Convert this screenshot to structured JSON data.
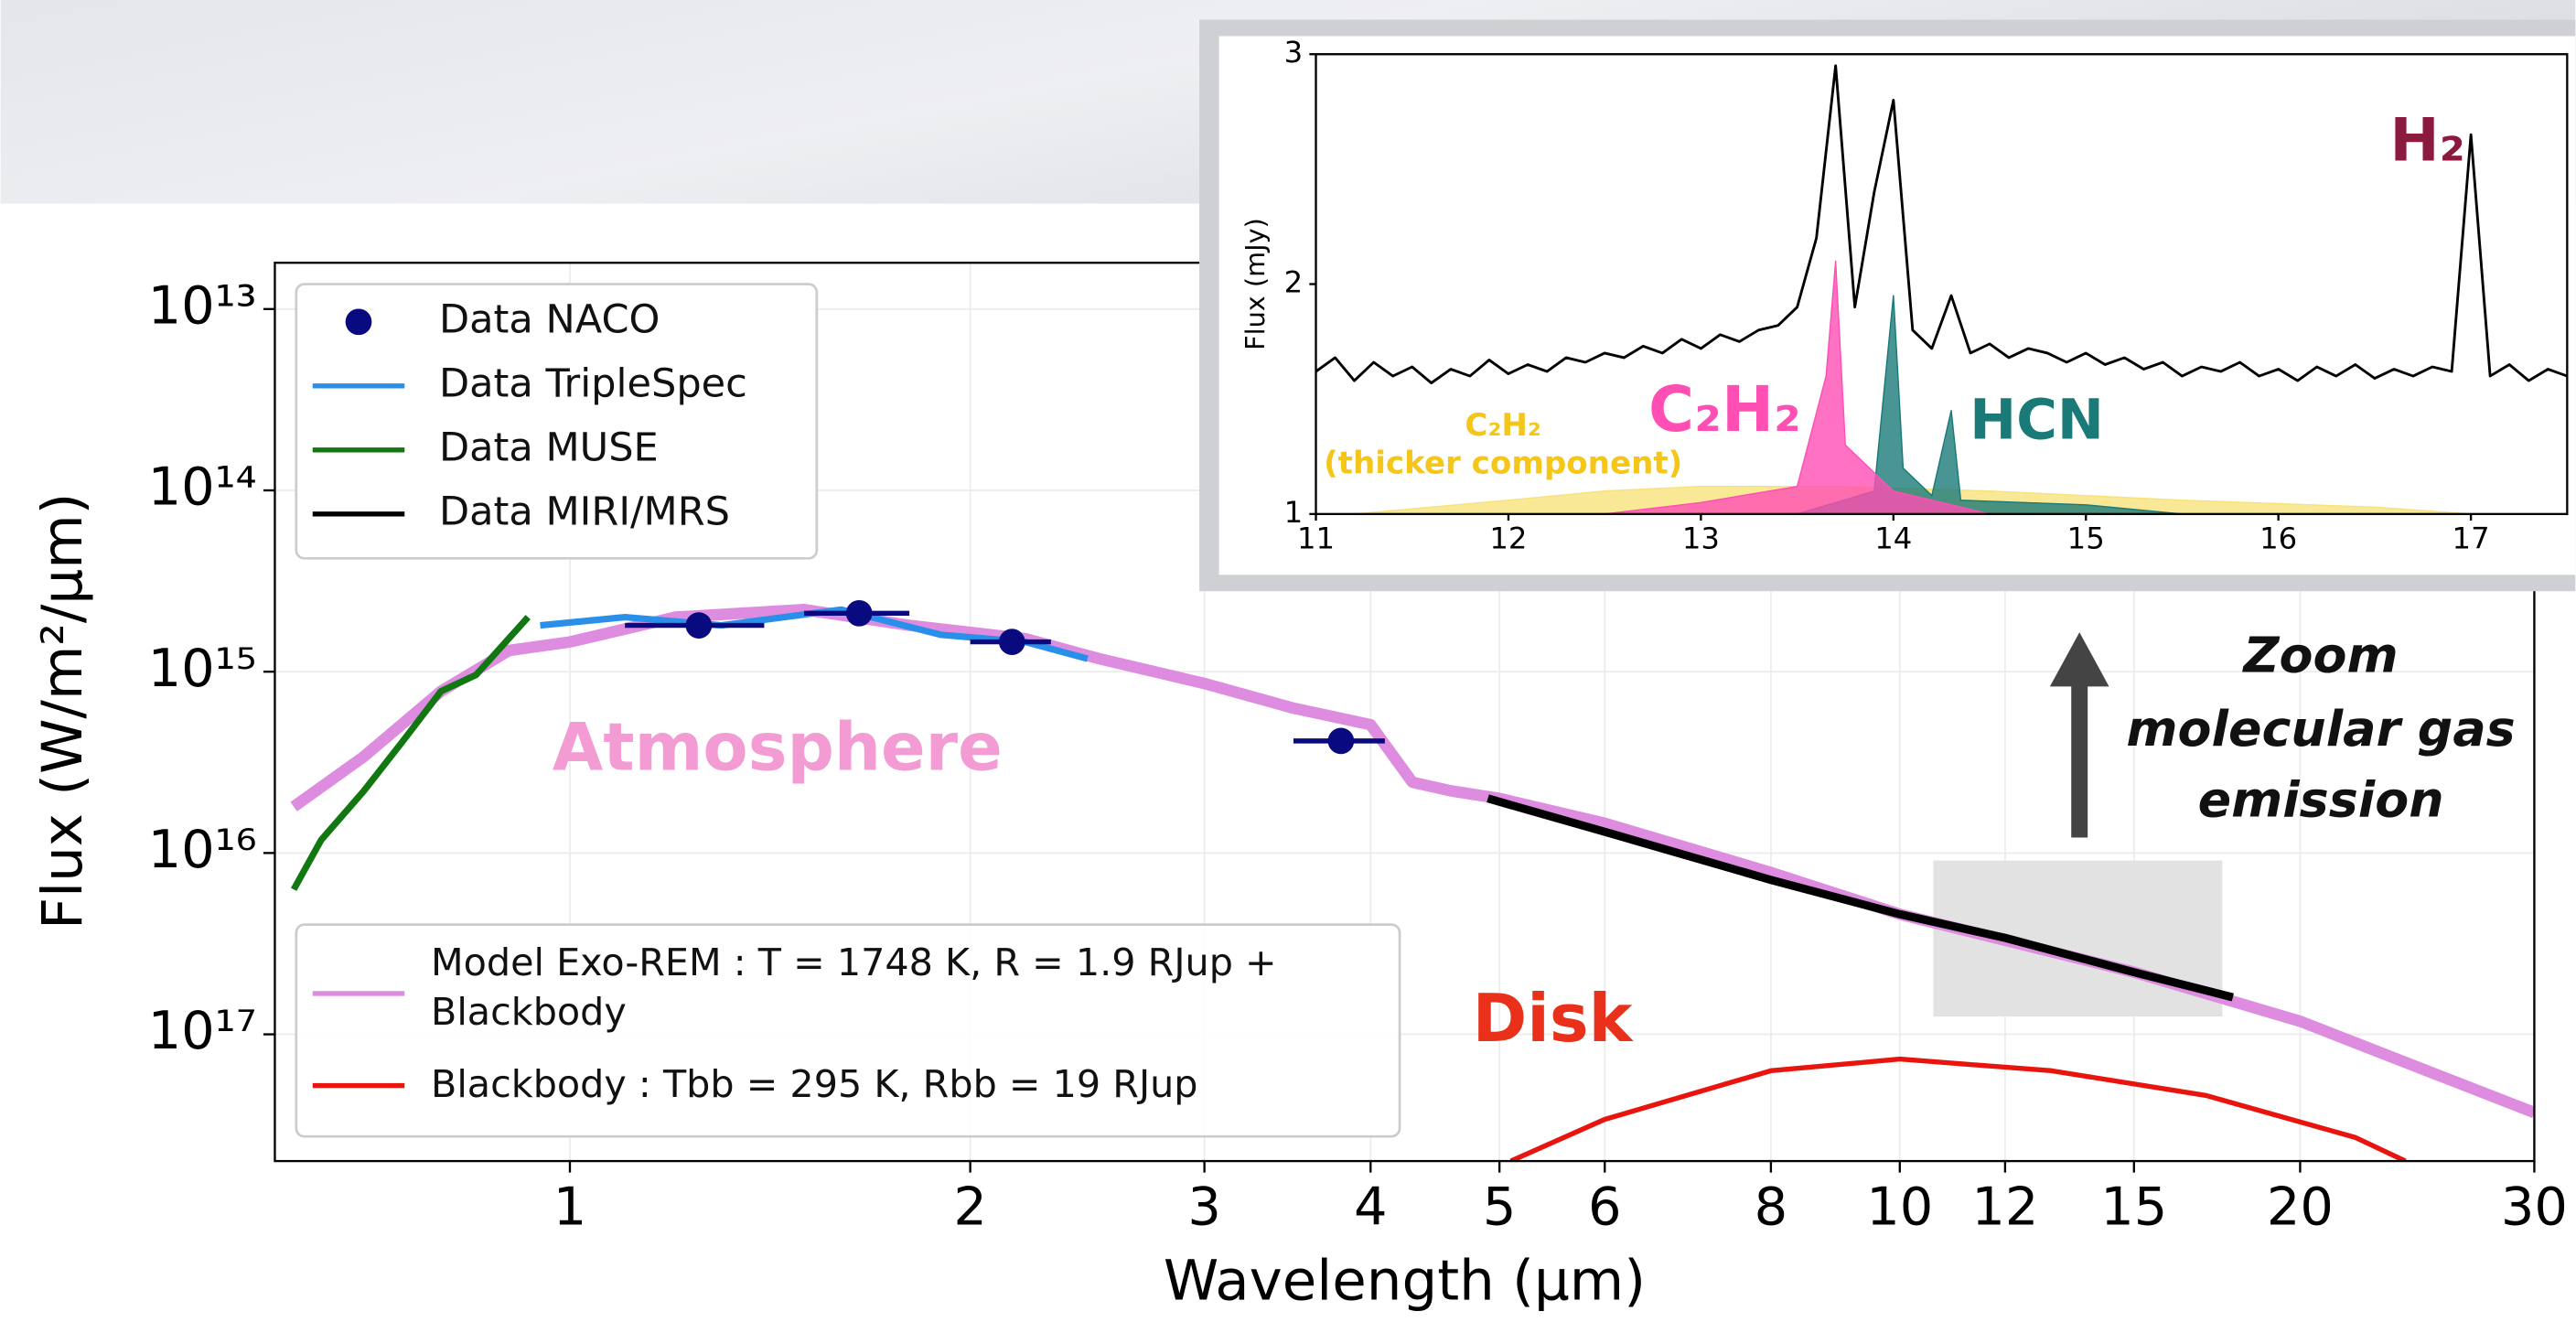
{
  "chart_data": [
    {
      "type": "line",
      "xscale": "log",
      "yscale": "log",
      "grid": true,
      "xlabel": "Wavelength (μm)",
      "ylabel": "Flux (W/m²/μm)",
      "xlim": [
        0.6,
        30
      ],
      "ylim": [
        2e-18,
        1.8e-13
      ],
      "xticks": [
        1,
        2,
        3,
        4,
        5,
        6,
        8,
        10,
        12,
        15,
        20,
        30
      ],
      "yticks": [
        {
          "value": 1e-13,
          "label": "10¹³"
        },
        {
          "value": 1e-14,
          "label": "10¹⁴"
        },
        {
          "value": 1e-15,
          "label": "10¹⁵"
        },
        {
          "value": 1e-16,
          "label": "10¹⁶"
        },
        {
          "value": 1e-17,
          "label": "10¹⁷"
        }
      ],
      "series": [
        {
          "name": "Model Exo-REM : T = 1748 K, R = 1.9 RJup + Blackbody",
          "color": "#dd8ce0",
          "legend": "lower",
          "x": [
            0.62,
            0.7,
            0.8,
            0.9,
            1.0,
            1.2,
            1.5,
            1.8,
            2.2,
            2.5,
            3.0,
            3.5,
            4.0,
            4.3,
            4.6,
            5,
            6,
            8,
            10,
            15,
            20,
            30
          ],
          "values": [
            1.8e-16,
            3.4e-16,
            7.8e-16,
            1.31e-15,
            1.46e-15,
            2e-15,
            2.2e-15,
            1.8e-15,
            1.52e-15,
            1.18e-15,
            8.6e-16,
            6.3e-16,
            5.1e-16,
            2.46e-16,
            2.2e-16,
            2e-16,
            1.46e-16,
            7.8e-17,
            4.6e-17,
            2.2e-17,
            1.18e-17,
            3.7e-18
          ]
        },
        {
          "name": "Blackbody : Tbb = 295 K, Rbb = 19 RJup",
          "color": "#e8150f",
          "legend": "lower",
          "x": [
            5.1,
            6,
            8,
            10,
            13,
            17,
            22,
            24
          ],
          "values": [
            2e-18,
            3.4e-18,
            6.3e-18,
            7.3e-18,
            6.3e-18,
            4.6e-18,
            2.7e-18,
            2e-18
          ]
        },
        {
          "name": "Data MUSE",
          "color": "#117711",
          "legend": "upper",
          "x": [
            0.62,
            0.65,
            0.7,
            0.75,
            0.8,
            0.85,
            0.93
          ],
          "values": [
            6.3e-17,
            1.18e-16,
            2.2e-16,
            4.2e-16,
            7.8e-16,
            9.6e-16,
            2e-15
          ]
        },
        {
          "name": "Data TripleSpec",
          "color": "#2a8fe8",
          "legend": "upper",
          "x": [
            0.95,
            1.1,
            1.3,
            1.6,
            1.9,
            2.2,
            2.45
          ],
          "values": [
            1.8e-15,
            2e-15,
            1.8e-15,
            2.2e-15,
            1.6e-15,
            1.46e-15,
            1.18e-15
          ]
        },
        {
          "name": "Data MIRI/MRS",
          "color": "#000000",
          "legend": "upper",
          "x": [
            4.9,
            6,
            8,
            10,
            12,
            15,
            17.8
          ],
          "values": [
            2e-16,
            1.31e-16,
            7.1e-17,
            4.6e-17,
            3.4e-17,
            2.2e-17,
            1.6e-17
          ]
        },
        {
          "name": "Data NACO",
          "color": "#0a0a80",
          "legend": "upper",
          "marker": true,
          "x": [
            1.25,
            1.65,
            2.15,
            3.8
          ],
          "xerr": [
            0.15,
            0.15,
            0.15,
            0.3
          ],
          "values": [
            1.8e-15,
            2.1e-15,
            1.46e-15,
            4.15e-16
          ]
        }
      ],
      "annotations": {
        "atmosphere": "Atmosphere",
        "disk": "Disk",
        "zoom": [
          "Zoom",
          "molecular gas",
          "emission"
        ]
      }
    },
    {
      "type": "line",
      "ylabel": "Flux (mJy)",
      "xlim": [
        11,
        17.5
      ],
      "ylim": [
        1,
        3
      ],
      "xticks": [
        11,
        12,
        13,
        14,
        15,
        16,
        17
      ],
      "yticks": [
        1,
        2,
        3
      ],
      "series": [
        {
          "name": "C₂H₂",
          "color": "#f8e27a",
          "fill": true,
          "x": [
            11.2,
            12.0,
            12.5,
            13.0,
            13.7,
            14.5,
            15.5,
            16.5,
            17.0
          ],
          "values": [
            1.0,
            1.06,
            1.1,
            1.12,
            1.12,
            1.1,
            1.06,
            1.03,
            1.0
          ]
        },
        {
          "name": "HCN",
          "color": "#1a7a78",
          "fill": true,
          "x": [
            13.5,
            13.9,
            14.0,
            14.05,
            14.2,
            14.3,
            14.35,
            15.0,
            15.5
          ],
          "values": [
            1.0,
            1.1,
            1.95,
            1.2,
            1.08,
            1.45,
            1.06,
            1.04,
            1.0
          ]
        },
        {
          "name": "C₂H₂",
          "color": "#ff4fb4",
          "fill": true,
          "x": [
            12.5,
            13.0,
            13.5,
            13.65,
            13.7,
            13.75,
            14.0,
            14.5
          ],
          "values": [
            1.0,
            1.05,
            1.12,
            1.6,
            2.1,
            1.3,
            1.1,
            1.0
          ]
        },
        {
          "name": "H₂",
          "color": "#000000",
          "x": [
            11.0,
            11.1,
            11.2,
            11.3,
            11.4,
            11.5,
            11.6,
            11.7,
            11.8,
            11.9,
            12.0,
            12.1,
            12.2,
            12.3,
            12.4,
            12.5,
            12.6,
            12.7,
            12.8,
            12.9,
            13.0,
            13.1,
            13.2,
            13.3,
            13.4,
            13.5,
            13.6,
            13.7,
            13.8,
            13.9,
            14.0,
            14.1,
            14.2,
            14.3,
            14.4,
            14.5,
            14.6,
            14.7,
            14.8,
            14.9,
            15.0,
            15.1,
            15.2,
            15.3,
            15.4,
            15.5,
            15.6,
            15.7,
            15.8,
            15.9,
            16.0,
            16.1,
            16.2,
            16.3,
            16.4,
            16.5,
            16.6,
            16.7,
            16.8,
            16.9,
            17.0,
            17.1,
            17.2,
            17.3,
            17.4,
            17.5
          ],
          "values": [
            1.62,
            1.68,
            1.58,
            1.66,
            1.6,
            1.64,
            1.57,
            1.63,
            1.6,
            1.67,
            1.61,
            1.65,
            1.62,
            1.68,
            1.66,
            1.7,
            1.68,
            1.73,
            1.7,
            1.76,
            1.72,
            1.78,
            1.75,
            1.8,
            1.82,
            1.9,
            2.2,
            2.95,
            1.9,
            2.4,
            2.8,
            1.8,
            1.72,
            1.95,
            1.7,
            1.74,
            1.68,
            1.72,
            1.7,
            1.66,
            1.7,
            1.65,
            1.68,
            1.63,
            1.66,
            1.6,
            1.64,
            1.62,
            1.66,
            1.6,
            1.63,
            1.58,
            1.64,
            1.6,
            1.65,
            1.59,
            1.63,
            1.6,
            1.64,
            1.62,
            2.65,
            1.6,
            1.65,
            1.58,
            1.63,
            1.6
          ]
        }
      ],
      "annotations": {
        "thick": "(thicker component)"
      }
    }
  ]
}
